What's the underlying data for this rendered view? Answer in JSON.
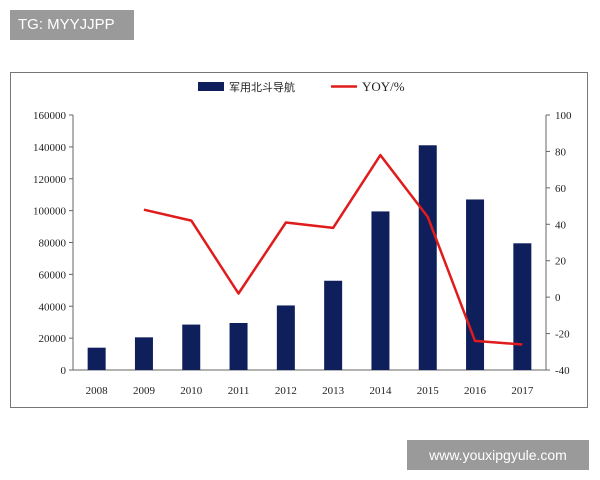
{
  "watermark_top": "TG: MYYJJPP",
  "watermark_bottom": "www.youxipgyule.com",
  "chart_data": {
    "type": "bar",
    "categories": [
      "2008",
      "2009",
      "2010",
      "2011",
      "2012",
      "2013",
      "2014",
      "2015",
      "2016",
      "2017"
    ],
    "series": [
      {
        "name": "军用北斗导航",
        "type": "bar",
        "axis": "left",
        "color": "#0f1f5c",
        "values": [
          14000,
          20500,
          28500,
          29500,
          40500,
          56000,
          99500,
          141000,
          107000,
          79500
        ]
      },
      {
        "name": "YOY/%",
        "type": "line",
        "axis": "right",
        "color": "#e01b1b",
        "values": [
          null,
          48,
          42,
          2,
          41,
          38,
          78,
          44,
          -24,
          -26
        ]
      }
    ],
    "y_left": {
      "min": 0,
      "max": 160000,
      "ticks": [
        "0",
        "20000",
        "40000",
        "60000",
        "80000",
        "100000",
        "120000",
        "140000",
        "160000"
      ]
    },
    "y_right": {
      "min": -40,
      "max": 100,
      "ticks": [
        "-40",
        "-20",
        "0",
        "20",
        "40",
        "60",
        "80",
        "100"
      ]
    },
    "legend_position": "top",
    "grid": false
  }
}
